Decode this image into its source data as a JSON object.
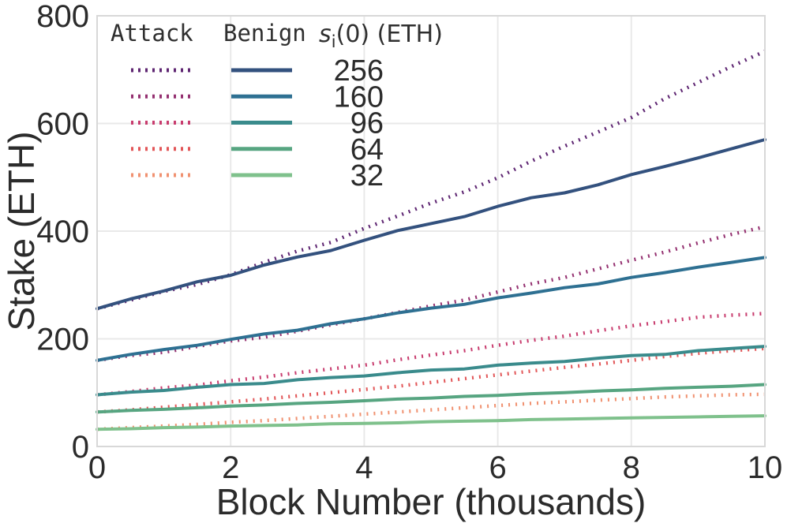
{
  "chart_data": {
    "type": "line",
    "title": "",
    "xlabel": "Block Number (thousands)",
    "ylabel": "Stake (ETH)",
    "xlim": [
      0,
      10
    ],
    "ylim": [
      0,
      800
    ],
    "xticks": [
      0,
      2,
      4,
      6,
      8,
      10
    ],
    "yticks": [
      0,
      200,
      400,
      600,
      800
    ],
    "grid": true,
    "grid_color": "#e9e9e9",
    "spine_color": "#d8d8d8",
    "legend_position": "upper left",
    "x": [
      0,
      0.5,
      1,
      1.5,
      2,
      2.5,
      3,
      3.5,
      4,
      4.5,
      5,
      5.5,
      6,
      6.5,
      7,
      7.5,
      8,
      8.5,
      9,
      9.5,
      10
    ],
    "series": [
      {
        "name": "attack-256",
        "group": "Attack",
        "s0": 256,
        "style": "dotted",
        "color": "#5e2572",
        "values": [
          256,
          272,
          288,
          301,
          319,
          342,
          363,
          379,
          405,
          428,
          452,
          473,
          499,
          530,
          558,
          584,
          611,
          646,
          676,
          706,
          734
        ]
      },
      {
        "name": "attack-160",
        "group": "Attack",
        "s0": 160,
        "style": "dotted",
        "color": "#943070",
        "values": [
          160,
          169,
          175,
          186,
          196,
          203,
          214,
          226,
          237,
          249,
          261,
          272,
          287,
          302,
          314,
          330,
          346,
          361,
          378,
          394,
          408
        ]
      },
      {
        "name": "attack-96",
        "group": "Attack",
        "s0": 96,
        "style": "dotted",
        "color": "#c83c6e",
        "values": [
          96,
          102,
          109,
          114,
          122,
          129,
          137,
          144,
          151,
          161,
          170,
          178,
          188,
          197,
          205,
          215,
          224,
          232,
          240,
          244,
          247
        ]
      },
      {
        "name": "attack-64",
        "group": "Attack",
        "s0": 64,
        "style": "dotted",
        "color": "#e25658",
        "values": [
          64,
          68,
          73,
          78,
          83,
          88,
          94,
          100,
          106,
          112,
          119,
          126,
          133,
          140,
          147,
          153,
          160,
          167,
          173,
          178,
          182
        ]
      },
      {
        "name": "attack-32",
        "group": "Attack",
        "s0": 32,
        "style": "dotted",
        "color": "#f09170",
        "values": [
          32,
          35,
          38,
          41,
          45,
          48,
          52,
          56,
          60,
          64,
          68,
          72,
          76,
          80,
          83,
          86,
          89,
          92,
          94,
          96,
          97
        ]
      },
      {
        "name": "benign-256",
        "group": "Benign",
        "s0": 256,
        "style": "solid",
        "color": "#33517e",
        "values": [
          256,
          274,
          289,
          306,
          318,
          337,
          352,
          364,
          383,
          401,
          414,
          427,
          446,
          462,
          471,
          486,
          505,
          520,
          536,
          553,
          570
        ]
      },
      {
        "name": "benign-160",
        "group": "Benign",
        "s0": 160,
        "style": "solid",
        "color": "#2e7092",
        "values": [
          160,
          171,
          180,
          188,
          199,
          209,
          216,
          228,
          237,
          248,
          257,
          264,
          276,
          285,
          295,
          302,
          314,
          323,
          333,
          342,
          351
        ]
      },
      {
        "name": "benign-96",
        "group": "Benign",
        "s0": 96,
        "style": "solid",
        "color": "#3a8b8c",
        "values": [
          96,
          101,
          104,
          110,
          115,
          117,
          124,
          128,
          131,
          137,
          142,
          144,
          151,
          155,
          158,
          164,
          169,
          171,
          178,
          182,
          186
        ]
      },
      {
        "name": "benign-64",
        "group": "Benign",
        "s0": 64,
        "style": "solid",
        "color": "#57a581",
        "values": [
          64,
          67,
          69,
          72,
          75,
          77,
          80,
          82,
          85,
          88,
          90,
          93,
          95,
          98,
          100,
          103,
          105,
          108,
          110,
          112,
          115
        ]
      },
      {
        "name": "benign-32",
        "group": "Benign",
        "s0": 32,
        "style": "solid",
        "color": "#7fc18c",
        "values": [
          32,
          33,
          35,
          36,
          38,
          39,
          40,
          42,
          43,
          44,
          46,
          47,
          48,
          50,
          51,
          52,
          53,
          54,
          55,
          56,
          57
        ]
      }
    ],
    "legend": {
      "header": {
        "attack": "Attack",
        "benign": "Benign",
        "s0_var": "s",
        "s0_sub": "i",
        "s0_rest": "(0) (ETH)"
      },
      "rows": [
        {
          "s0": "256",
          "attack_color": "#5e2572",
          "benign_color": "#33517e"
        },
        {
          "s0": "160",
          "attack_color": "#943070",
          "benign_color": "#2e7092"
        },
        {
          "s0": "96",
          "attack_color": "#c83c6e",
          "benign_color": "#3a8b8c"
        },
        {
          "s0": "64",
          "attack_color": "#e25658",
          "benign_color": "#57a581"
        },
        {
          "s0": "32",
          "attack_color": "#f09170",
          "benign_color": "#7fc18c"
        }
      ]
    }
  }
}
